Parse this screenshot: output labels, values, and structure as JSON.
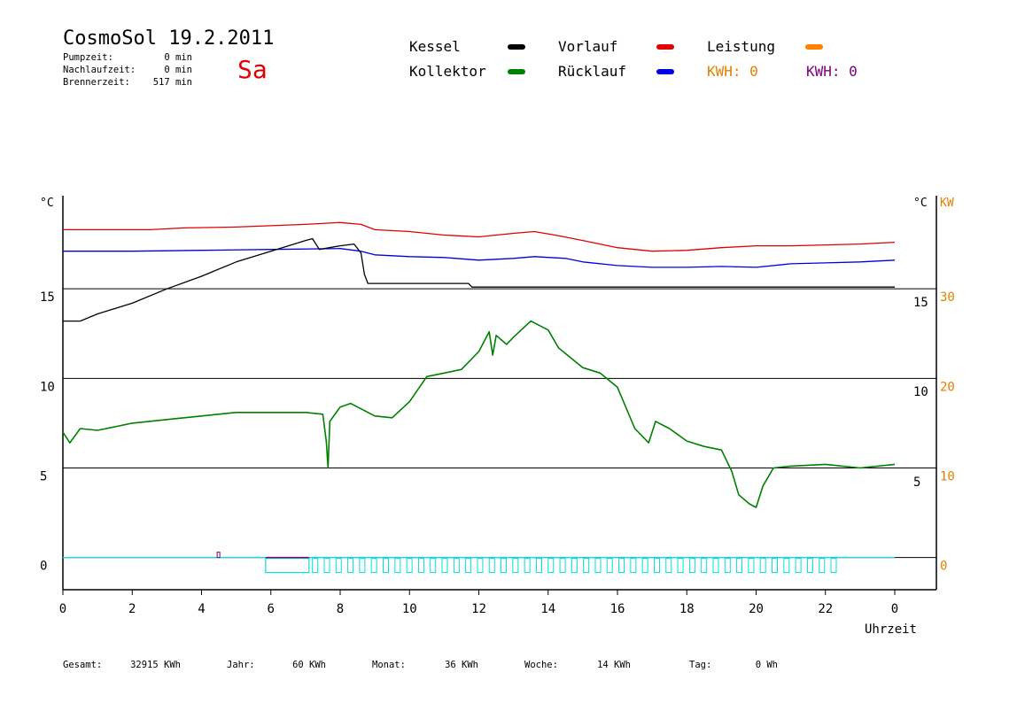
{
  "header": {
    "title": "CosmoSol 19.2.2011",
    "day": "Sa",
    "stats": [
      {
        "label": "Pumpzeit:",
        "value": "0 min"
      },
      {
        "label": "Nachlaufzeit:",
        "value": "0 min"
      },
      {
        "label": "Brennerzeit:",
        "value": "517 min"
      }
    ]
  },
  "legend": [
    {
      "label": "Kessel",
      "color": "#000000"
    },
    {
      "label": "Vorlauf",
      "color": "#e00000"
    },
    {
      "label": "Leistung",
      "color": "#ff8000"
    },
    {
      "label": "Kollektor",
      "color": "#008000"
    },
    {
      "label": "Rücklauf",
      "color": "#0000e0"
    }
  ],
  "kwh_readouts": [
    {
      "text": "KWH: 0",
      "color": "#e08000"
    },
    {
      "text": "KWH: 0",
      "color": "#800080"
    }
  ],
  "totals": [
    {
      "label": "Gesamt:",
      "value": "32915 KWh"
    },
    {
      "label": "Jahr:",
      "value": "60 KWh"
    },
    {
      "label": "Monat:",
      "value": "36 KWh"
    },
    {
      "label": "Woche:",
      "value": "14 KWh"
    },
    {
      "label": "Tag:",
      "value": "0 Wh"
    }
  ],
  "colors": {
    "leistung_axis": "#e08000",
    "pump": "#00e0e0",
    "brenner": "#800080"
  },
  "chart_data": {
    "type": "line",
    "xlabel": "Uhrzeit",
    "x_ticks": [
      "0",
      "2",
      "4",
      "6",
      "8",
      "10",
      "12",
      "14",
      "16",
      "18",
      "20",
      "22",
      "0"
    ],
    "xlim": [
      0,
      24
    ],
    "left_axis": {
      "unit": "°C",
      "ticks": [
        0,
        5,
        10,
        15
      ],
      "ylim": [
        -1.8,
        20.2
      ]
    },
    "right_axis_temp": {
      "unit": "°C",
      "ticks": [
        5,
        10,
        15
      ]
    },
    "right_axis_power": {
      "unit": "KW",
      "ticks": [
        0,
        10,
        20,
        30
      ]
    },
    "grid": "horizontal at 0, 5, 10, 15",
    "series": [
      {
        "name": "Vorlauf",
        "color": "#e00000",
        "points": [
          [
            0,
            18.3
          ],
          [
            2.5,
            18.3
          ],
          [
            3.5,
            18.4
          ],
          [
            5,
            18.45
          ],
          [
            7,
            18.6
          ],
          [
            8,
            18.7
          ],
          [
            8.6,
            18.6
          ],
          [
            9,
            18.3
          ],
          [
            10,
            18.2
          ],
          [
            11,
            18.0
          ],
          [
            12,
            17.9
          ],
          [
            13,
            18.1
          ],
          [
            13.6,
            18.2
          ],
          [
            14.2,
            18.0
          ],
          [
            15,
            17.7
          ],
          [
            16,
            17.3
          ],
          [
            17,
            17.1
          ],
          [
            18,
            17.15
          ],
          [
            19,
            17.3
          ],
          [
            20,
            17.4
          ],
          [
            21,
            17.4
          ],
          [
            22,
            17.45
          ],
          [
            23,
            17.5
          ],
          [
            24,
            17.6
          ]
        ]
      },
      {
        "name": "Rücklauf",
        "color": "#0000e0",
        "points": [
          [
            0,
            17.1
          ],
          [
            2,
            17.1
          ],
          [
            4,
            17.15
          ],
          [
            6,
            17.2
          ],
          [
            8,
            17.25
          ],
          [
            8.6,
            17.1
          ],
          [
            9,
            16.9
          ],
          [
            10,
            16.8
          ],
          [
            11,
            16.75
          ],
          [
            12,
            16.6
          ],
          [
            13,
            16.7
          ],
          [
            13.6,
            16.8
          ],
          [
            14.5,
            16.7
          ],
          [
            15,
            16.5
          ],
          [
            16,
            16.3
          ],
          [
            17,
            16.2
          ],
          [
            18,
            16.2
          ],
          [
            19,
            16.25
          ],
          [
            20,
            16.2
          ],
          [
            21,
            16.4
          ],
          [
            22,
            16.45
          ],
          [
            23,
            16.5
          ],
          [
            24,
            16.6
          ]
        ]
      },
      {
        "name": "Kessel",
        "color": "#000000",
        "points": [
          [
            0,
            13.2
          ],
          [
            0.5,
            13.2
          ],
          [
            1,
            13.6
          ],
          [
            2,
            14.2
          ],
          [
            3,
            15.0
          ],
          [
            4,
            15.7
          ],
          [
            5,
            16.5
          ],
          [
            6,
            17.1
          ],
          [
            7,
            17.7
          ],
          [
            7.2,
            17.8
          ],
          [
            7.4,
            17.2
          ],
          [
            8,
            17.4
          ],
          [
            8.4,
            17.5
          ],
          [
            8.6,
            17.0
          ],
          [
            8.7,
            15.8
          ],
          [
            8.8,
            15.3
          ],
          [
            10,
            15.3
          ],
          [
            11.7,
            15.3
          ],
          [
            11.8,
            15.1
          ],
          [
            24,
            15.1
          ]
        ]
      },
      {
        "name": "Kollektor",
        "color": "#008000",
        "points": [
          [
            0,
            7.0
          ],
          [
            0.2,
            6.4
          ],
          [
            0.5,
            7.2
          ],
          [
            1,
            7.1
          ],
          [
            2,
            7.5
          ],
          [
            3,
            7.7
          ],
          [
            4,
            7.9
          ],
          [
            5,
            8.1
          ],
          [
            6,
            8.1
          ],
          [
            7,
            8.1
          ],
          [
            7.5,
            8.0
          ],
          [
            7.6,
            6.5
          ],
          [
            7.65,
            5.0
          ],
          [
            7.7,
            7.6
          ],
          [
            8,
            8.4
          ],
          [
            8.3,
            8.6
          ],
          [
            8.6,
            8.3
          ],
          [
            9,
            7.9
          ],
          [
            9.5,
            7.8
          ],
          [
            10,
            8.7
          ],
          [
            10.5,
            10.1
          ],
          [
            11,
            10.3
          ],
          [
            11.5,
            10.5
          ],
          [
            12,
            11.5
          ],
          [
            12.3,
            12.6
          ],
          [
            12.4,
            11.3
          ],
          [
            12.5,
            12.4
          ],
          [
            12.8,
            11.9
          ],
          [
            13,
            12.3
          ],
          [
            13.5,
            13.2
          ],
          [
            14,
            12.7
          ],
          [
            14.3,
            11.7
          ],
          [
            15,
            10.6
          ],
          [
            15.5,
            10.3
          ],
          [
            16,
            9.5
          ],
          [
            16.5,
            7.2
          ],
          [
            16.9,
            6.4
          ],
          [
            17.1,
            7.6
          ],
          [
            17.5,
            7.2
          ],
          [
            18,
            6.5
          ],
          [
            18.5,
            6.2
          ],
          [
            19,
            6.0
          ],
          [
            19.3,
            4.8
          ],
          [
            19.5,
            3.5
          ],
          [
            19.8,
            3.0
          ],
          [
            20,
            2.8
          ],
          [
            20.2,
            4.0
          ],
          [
            20.5,
            5.0
          ],
          [
            21,
            5.1
          ],
          [
            22,
            5.2
          ],
          [
            23,
            5.0
          ],
          [
            24,
            5.2
          ]
        ]
      },
      {
        "name": "Leistung",
        "color": "#00e0e0",
        "points": [
          [
            0,
            0
          ],
          [
            24,
            0
          ]
        ]
      }
    ]
  }
}
